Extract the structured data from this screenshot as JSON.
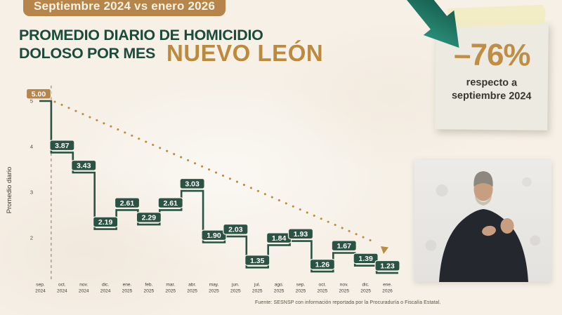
{
  "colors": {
    "background": "#f6f0e7",
    "header_badge_bg": "#b5854b",
    "header_badge_text": "#f8f2df",
    "title_green": "#1c4a3b",
    "region_gold": "#bb8a3d",
    "step_line_green": "#2b5344",
    "value_badge_green": "#2b5344",
    "first_value_badge_tan": "#b5854b",
    "trend_dotted_gold": "#b98c42",
    "stat_card_bg": "#edeae2",
    "tape_yellow": "#f2edc3",
    "stat_value_gold": "#c08d45",
    "arrow_gradient_dark": "#0d4237",
    "arrow_gradient_teal": "#2f9e85"
  },
  "header": {
    "badge_label": "Septiembre 2024 vs enero 2026",
    "title_line1": "PROMEDIO DIARIO DE HOMICIDIO",
    "title_line2": "DOLOSO POR MES",
    "region_label": "NUEVO LEÓN"
  },
  "chart_data": {
    "type": "line",
    "subtype": "step",
    "title": "Promedio diario de homicidio doloso por mes — Nuevo León",
    "xlabel": "",
    "ylabel": "Promedio diario",
    "yticks": [
      2,
      3,
      4,
      5
    ],
    "ylim": [
      1.0,
      5.2
    ],
    "grid": false,
    "legend": "none",
    "categories": [
      "sep. 2024",
      "oct. 2024",
      "nov. 2024",
      "dic. 2024",
      "ene. 2025",
      "feb. 2025",
      "mar. 2025",
      "abr. 2025",
      "may. 2025",
      "jun. 2025",
      "jul. 2025",
      "ago. 2025",
      "sep. 2025",
      "oct. 2025",
      "nov. 2025",
      "dic. 2025",
      "ene. 2026"
    ],
    "values": [
      5.0,
      3.87,
      3.43,
      2.19,
      2.61,
      2.29,
      2.61,
      3.03,
      1.9,
      2.03,
      1.35,
      1.84,
      1.93,
      1.26,
      1.67,
      1.39,
      1.23
    ],
    "value_labels": [
      "5.00",
      "3.87",
      "3.43",
      "2.19",
      "2.61",
      "2.29",
      "2.61",
      "3.03",
      "1.90",
      "2.03",
      "1.35",
      "1.84",
      "1.93",
      "1.26",
      "1.67",
      "1.39",
      "1.23"
    ],
    "annotations": {
      "dashed_reference_line_at": "sep. 2024",
      "trend_arrow": "dotted declining trend line from 5.00 (sep. 2024) to arrowhead near 1.23 (ene. 2026)"
    }
  },
  "stat_card": {
    "value": "–76%",
    "caption_line1": "respecto a",
    "caption_line2": "septiembre 2024"
  },
  "footer": {
    "source": "Fuente: SESNSP con información reportada por la Procuraduría o Fiscalía Estatal."
  }
}
